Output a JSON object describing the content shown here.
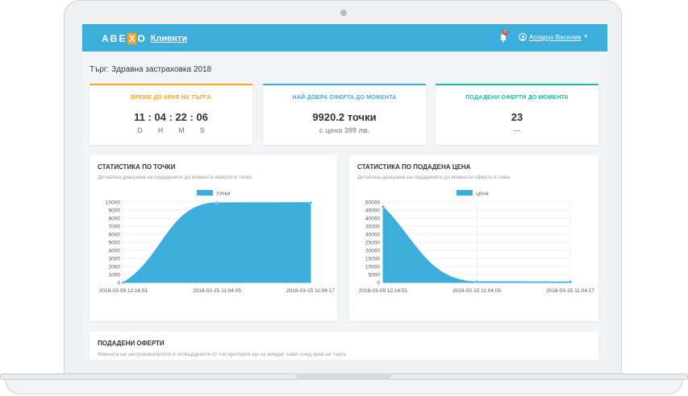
{
  "app": {
    "logo": {
      "left": "ABE",
      "x": "X",
      "right": "O"
    },
    "title": "Клиенти",
    "notification_count": "0",
    "user_name": "Аспарух Василев"
  },
  "page_title": "Търг: Здравна застраховка 2018",
  "cards": {
    "time": {
      "title": "ВРЕМЕ ДО КРАЯ НА ТЪРГА",
      "value": "11 : 04 : 22 : 06",
      "units": [
        "D",
        "H",
        "M",
        "S"
      ],
      "accent": "#f6a21e"
    },
    "best": {
      "title": "НАЙ-ДОБРА ОФЕРТА ДО МОМЕНТА",
      "value": "9920.2 точки",
      "sub": "с цена 399 лв.",
      "accent": "#3daedc"
    },
    "count": {
      "title": "ПОДАДЕНИ ОФЕРТИ ДО МОМЕНТА",
      "value": "23",
      "sub": "---",
      "accent": "#1abc9c"
    }
  },
  "charts": {
    "points": {
      "title": "СТАТИСТИКА ПО ТОЧКИ",
      "subtitle": "Детайлна диаграма на подадените до момента оферти в точки."
    },
    "price": {
      "title": "СТАТИСТИКА ПО ПОДАДЕНА ЦЕНА",
      "subtitle": "Детайлна диаграма на подадените до момента оферти в лева"
    }
  },
  "offers": {
    "title": "ПОДАДЕНИ ОФЕРТИ",
    "subtitle": "Имената на застрахователите и потвърдените от тях критерии ще се виждат само след края на търга"
  },
  "colors": {
    "brand": "#3daedc",
    "fill": "#3daedc"
  },
  "chart_data": [
    {
      "type": "area",
      "legend": "точки",
      "x": [
        "2018-03-09 12:16:51",
        "2018-03-15 11:04:05",
        "2018-03-15 11:04:17"
      ],
      "x_pos": [
        0,
        0.5,
        1
      ],
      "y": [
        0,
        9900,
        9920.2
      ],
      "ylim": [
        0,
        10000
      ],
      "yticks": [
        "0",
        "1000",
        "2000",
        "3000",
        "4000",
        "5000",
        "6000",
        "7000",
        "8000",
        "9000",
        "10000"
      ],
      "xticks": [
        "2018-03-09 12:16:51",
        "2018-03-15 11:04:05",
        "2018-03-15 11:04:17"
      ],
      "grid": true,
      "legend_position": "top"
    },
    {
      "type": "area",
      "legend": "цена",
      "x": [
        "2018-03-09 12:16:51",
        "2018-03-15 11:04:05",
        "2018-03-15 11:04:17"
      ],
      "x_pos": [
        0,
        0.5,
        1
      ],
      "y": [
        47000,
        500,
        399
      ],
      "ylim": [
        0,
        50000
      ],
      "yticks": [
        "0",
        "5000",
        "10000",
        "15000",
        "20000",
        "25000",
        "30000",
        "35000",
        "40000",
        "45000",
        "50000"
      ],
      "xticks": [
        "2018-03-09 12:16:51",
        "2018-03-15 11:04:05",
        "2018-03-15 11:04:17"
      ],
      "grid": true,
      "legend_position": "top"
    }
  ]
}
